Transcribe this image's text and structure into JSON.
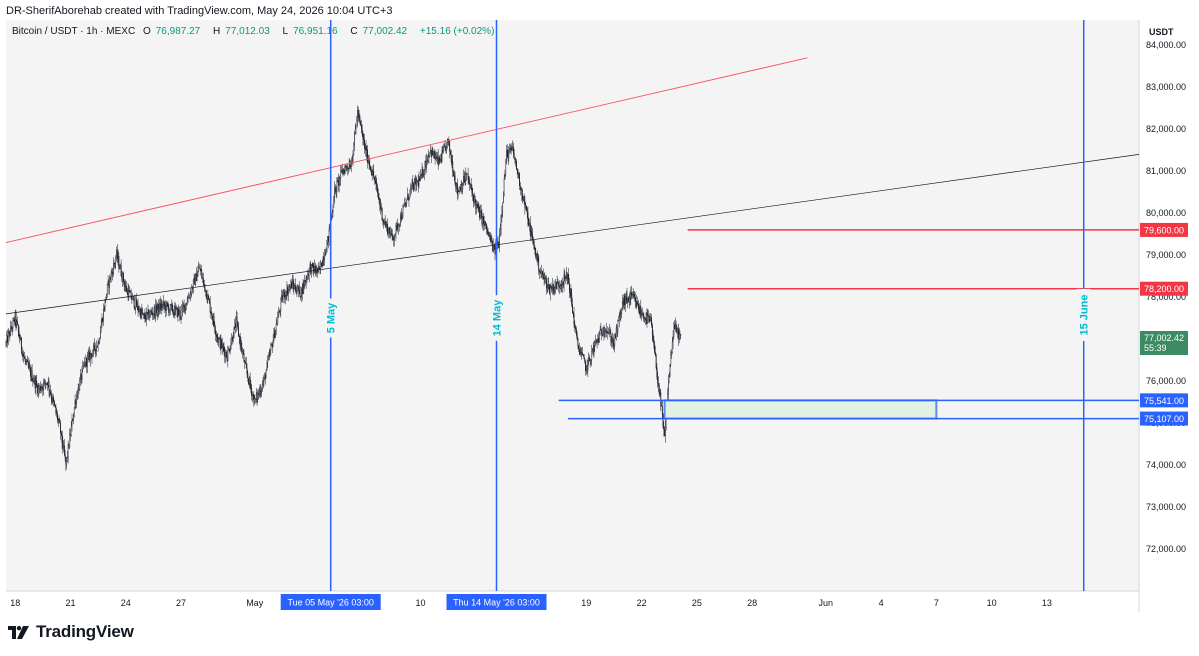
{
  "header": {
    "attribution": "DR-SherifAborehab created with TradingView.com, May 24, 2026 10:04 UTC+3"
  },
  "legend": {
    "symbol": "Bitcoin / USDT · 1h · MEXC",
    "open_label": "O",
    "open": "76,987.27",
    "high_label": "H",
    "high": "77,012.03",
    "low_label": "L",
    "low": "76,951.16",
    "close_label": "C",
    "close": "77,002.42",
    "change": "+15.16 (+0.02%)"
  },
  "footer": {
    "brand": "TradingView"
  },
  "colors": {
    "background": "#f4f4f4",
    "blue": "#2962ff",
    "red": "#f23645",
    "red_line": "#f7525f",
    "teal_label": "#00bcd4",
    "current_price": "#3d8b64",
    "zone_fill": "#e3f1e4",
    "zone_border": "#5b8def",
    "axis_text": "#131722",
    "candle": "#131722"
  },
  "chart_data": {
    "type": "candlestick",
    "symbol": "Bitcoin / USDT",
    "interval": "1h",
    "exchange": "MEXC",
    "y_axis_unit": "USDT",
    "ylim": [
      71000,
      84600
    ],
    "y_ticks": [
      72000,
      73000,
      74000,
      75000,
      76000,
      77000,
      78000,
      79000,
      80000,
      81000,
      82000,
      83000,
      84000
    ],
    "y_tick_labels": [
      "72,000.00",
      "73,000.00",
      "74,000.00",
      "75,000.00",
      "76,000.00",
      "77,000.00",
      "78,000.00",
      "79,000.00",
      "80,000.00",
      "81,000.00",
      "82,000.00",
      "83,000.00",
      "84,000.00"
    ],
    "x_range": [
      "2026-04-17T12:00",
      "2026-06-18T00:00"
    ],
    "x_ticks": [
      {
        "label": "18",
        "date": "2026-04-18T00:00"
      },
      {
        "label": "21",
        "date": "2026-04-21T00:00"
      },
      {
        "label": "24",
        "date": "2026-04-24T00:00"
      },
      {
        "label": "27",
        "date": "2026-04-27T00:00"
      },
      {
        "label": "May",
        "date": "2026-05-01T00:00"
      },
      {
        "label": "10",
        "date": "2026-05-10T00:00"
      },
      {
        "label": "19",
        "date": "2026-05-19T00:00"
      },
      {
        "label": "22",
        "date": "2026-05-22T00:00"
      },
      {
        "label": "25",
        "date": "2026-05-25T00:00"
      },
      {
        "label": "28",
        "date": "2026-05-28T00:00"
      },
      {
        "label": "Jun",
        "date": "2026-06-01T00:00"
      },
      {
        "label": "4",
        "date": "2026-06-04T00:00"
      },
      {
        "label": "7",
        "date": "2026-06-07T00:00"
      },
      {
        "label": "10",
        "date": "2026-06-10T00:00"
      },
      {
        "label": "13",
        "date": "2026-06-13T00:00"
      }
    ],
    "x_highlight_labels": [
      {
        "label": "Tue 05 May '26   03:00",
        "date": "2026-05-05T03:00"
      },
      {
        "label": "Thu 14 May '26   03:00",
        "date": "2026-05-14T03:00"
      }
    ],
    "price_path": [
      {
        "t": "2026-04-17T12:00",
        "p": 76900
      },
      {
        "t": "2026-04-18T00:00",
        "p": 77500
      },
      {
        "t": "2026-04-18T12:00",
        "p": 76500
      },
      {
        "t": "2026-04-19T06:00",
        "p": 75800
      },
      {
        "t": "2026-04-19T18:00",
        "p": 76000
      },
      {
        "t": "2026-04-20T10:00",
        "p": 74900
      },
      {
        "t": "2026-04-20T18:00",
        "p": 74000
      },
      {
        "t": "2026-04-21T06:00",
        "p": 75500
      },
      {
        "t": "2026-04-21T18:00",
        "p": 76400
      },
      {
        "t": "2026-04-22T12:00",
        "p": 76900
      },
      {
        "t": "2026-04-23T00:00",
        "p": 78200
      },
      {
        "t": "2026-04-23T12:00",
        "p": 79000
      },
      {
        "t": "2026-04-24T00:00",
        "p": 78200
      },
      {
        "t": "2026-04-25T00:00",
        "p": 77500
      },
      {
        "t": "2026-04-26T00:00",
        "p": 77800
      },
      {
        "t": "2026-04-27T00:00",
        "p": 77600
      },
      {
        "t": "2026-04-27T12:00",
        "p": 78100
      },
      {
        "t": "2026-04-28T00:00",
        "p": 78700
      },
      {
        "t": "2026-04-28T12:00",
        "p": 77900
      },
      {
        "t": "2026-04-29T00:00",
        "p": 77000
      },
      {
        "t": "2026-04-29T12:00",
        "p": 76600
      },
      {
        "t": "2026-04-30T00:00",
        "p": 77400
      },
      {
        "t": "2026-04-30T12:00",
        "p": 76300
      },
      {
        "t": "2026-05-01T00:00",
        "p": 75500
      },
      {
        "t": "2026-05-01T12:00",
        "p": 76000
      },
      {
        "t": "2026-05-02T00:00",
        "p": 77000
      },
      {
        "t": "2026-05-02T12:00",
        "p": 78000
      },
      {
        "t": "2026-05-03T00:00",
        "p": 78300
      },
      {
        "t": "2026-05-03T12:00",
        "p": 78100
      },
      {
        "t": "2026-05-04T00:00",
        "p": 78700
      },
      {
        "t": "2026-05-04T12:00",
        "p": 78600
      },
      {
        "t": "2026-05-05T00:00",
        "p": 79400
      },
      {
        "t": "2026-05-05T08:00",
        "p": 80500
      },
      {
        "t": "2026-05-05T18:00",
        "p": 81000
      },
      {
        "t": "2026-05-06T06:00",
        "p": 81200
      },
      {
        "t": "2026-05-06T14:00",
        "p": 82400
      },
      {
        "t": "2026-05-07T00:00",
        "p": 81500
      },
      {
        "t": "2026-05-07T12:00",
        "p": 80800
      },
      {
        "t": "2026-05-08T00:00",
        "p": 79800
      },
      {
        "t": "2026-05-08T12:00",
        "p": 79400
      },
      {
        "t": "2026-05-09T00:00",
        "p": 80000
      },
      {
        "t": "2026-05-09T12:00",
        "p": 80600
      },
      {
        "t": "2026-05-10T00:00",
        "p": 80800
      },
      {
        "t": "2026-05-10T12:00",
        "p": 81500
      },
      {
        "t": "2026-05-11T00:00",
        "p": 81200
      },
      {
        "t": "2026-05-11T12:00",
        "p": 81700
      },
      {
        "t": "2026-05-12T00:00",
        "p": 80500
      },
      {
        "t": "2026-05-12T12:00",
        "p": 80900
      },
      {
        "t": "2026-05-13T00:00",
        "p": 80200
      },
      {
        "t": "2026-05-13T12:00",
        "p": 79700
      },
      {
        "t": "2026-05-14T00:00",
        "p": 79100
      },
      {
        "t": "2026-05-14T06:00",
        "p": 79300
      },
      {
        "t": "2026-05-14T16:00",
        "p": 81400
      },
      {
        "t": "2026-05-15T00:00",
        "p": 81500
      },
      {
        "t": "2026-05-15T12:00",
        "p": 80500
      },
      {
        "t": "2026-05-16T00:00",
        "p": 79500
      },
      {
        "t": "2026-05-16T12:00",
        "p": 78600
      },
      {
        "t": "2026-05-17T00:00",
        "p": 78200
      },
      {
        "t": "2026-05-17T12:00",
        "p": 78300
      },
      {
        "t": "2026-05-18T00:00",
        "p": 78500
      },
      {
        "t": "2026-05-18T12:00",
        "p": 76900
      },
      {
        "t": "2026-05-19T00:00",
        "p": 76300
      },
      {
        "t": "2026-05-19T12:00",
        "p": 76900
      },
      {
        "t": "2026-05-20T00:00",
        "p": 77300
      },
      {
        "t": "2026-05-20T12:00",
        "p": 76900
      },
      {
        "t": "2026-05-21T00:00",
        "p": 77900
      },
      {
        "t": "2026-05-21T12:00",
        "p": 78000
      },
      {
        "t": "2026-05-22T00:00",
        "p": 77600
      },
      {
        "t": "2026-05-22T12:00",
        "p": 77400
      },
      {
        "t": "2026-05-23T00:00",
        "p": 75600
      },
      {
        "t": "2026-05-23T06:00",
        "p": 74600
      },
      {
        "t": "2026-05-23T12:00",
        "p": 76200
      },
      {
        "t": "2026-05-23T18:00",
        "p": 77300
      },
      {
        "t": "2026-05-24T04:00",
        "p": 77000
      }
    ],
    "trendlines": [
      {
        "color": "red",
        "from": {
          "t": "2026-04-17T12:00",
          "p": 79300
        },
        "to": {
          "t": "2026-05-31T00:00",
          "p": 83700
        }
      },
      {
        "color": "black",
        "from": {
          "t": "2026-04-17T12:00",
          "p": 77600
        },
        "to": {
          "t": "2026-06-18T00:00",
          "p": 81400
        }
      }
    ],
    "horizontal_levels": [
      {
        "price": 79600.0,
        "label": "79,600.00",
        "color": "red",
        "from_t": "2026-05-24T12:00"
      },
      {
        "price": 78200.0,
        "label": "78,200.00",
        "color": "red",
        "from_t": "2026-05-24T12:00"
      },
      {
        "price": 75541.0,
        "label": "75,541.00",
        "color": "blue",
        "from_t": "2026-05-17T12:00"
      },
      {
        "price": 75107.0,
        "label": "75,107.00",
        "color": "blue",
        "from_t": "2026-05-18T00:00"
      }
    ],
    "zone": {
      "from_t": "2026-05-23T06:00",
      "to_t": "2026-06-07T00:00",
      "low": 75107,
      "high": 75541
    },
    "vertical_lines": [
      {
        "label": "5 May",
        "date": "2026-05-05T03:00"
      },
      {
        "label": "14 May",
        "date": "2026-05-14T03:00"
      },
      {
        "label": "15 June",
        "date": "2026-06-15T00:00"
      }
    ],
    "current_price": {
      "value": "77,002.42",
      "countdown": "55:39",
      "price": 77002.42
    }
  }
}
